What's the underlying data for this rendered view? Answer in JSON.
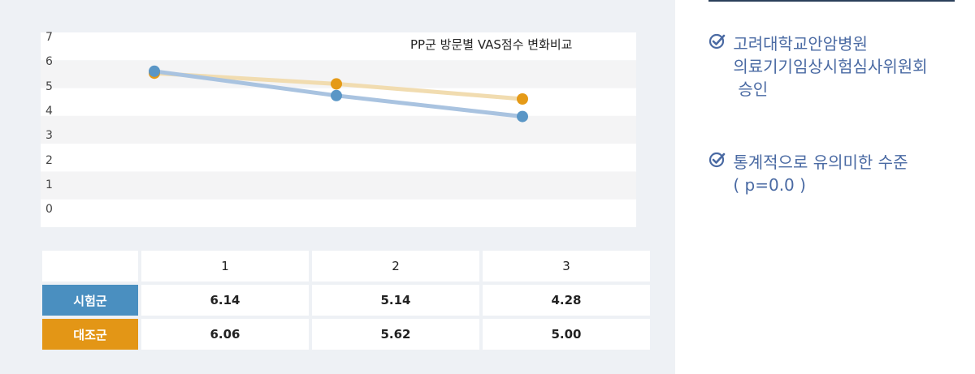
{
  "chart_data": {
    "type": "line",
    "title": "PP군 방문별 VAS점수 변화비교",
    "ylim": [
      0,
      7
    ],
    "yticks": [
      "7",
      "6",
      "5",
      "4",
      "3",
      "2",
      "1",
      "0"
    ],
    "categories": [
      "1",
      "2",
      "3"
    ],
    "series": [
      {
        "name": "시험군",
        "values": [
          6.14,
          5.14,
          4.28
        ],
        "color": "#5a96c6"
      },
      {
        "name": "대조군",
        "values": [
          6.06,
          5.62,
          5.0
        ],
        "color": "#e59a17"
      }
    ]
  },
  "table": {
    "headers": [
      "1",
      "2",
      "3"
    ],
    "rows": [
      {
        "label": "시험군",
        "color": "#4a8fc0",
        "values": [
          "6.14",
          "5.14",
          "4.28"
        ]
      },
      {
        "label": "대조군",
        "color": "#e39616",
        "values": [
          "6.06",
          "5.62",
          "5.00"
        ]
      }
    ]
  },
  "notes": [
    {
      "lines": [
        "고려대학교안암병원",
        "의료기기임상시험심사위원회",
        "승인"
      ]
    },
    {
      "lines": [
        "통계적으로 유의미한 수준",
        "( p=0.0 )"
      ]
    }
  ],
  "colors": {
    "accent": "#4a6aa3",
    "test": "#4a8fc0",
    "control": "#e39616"
  }
}
